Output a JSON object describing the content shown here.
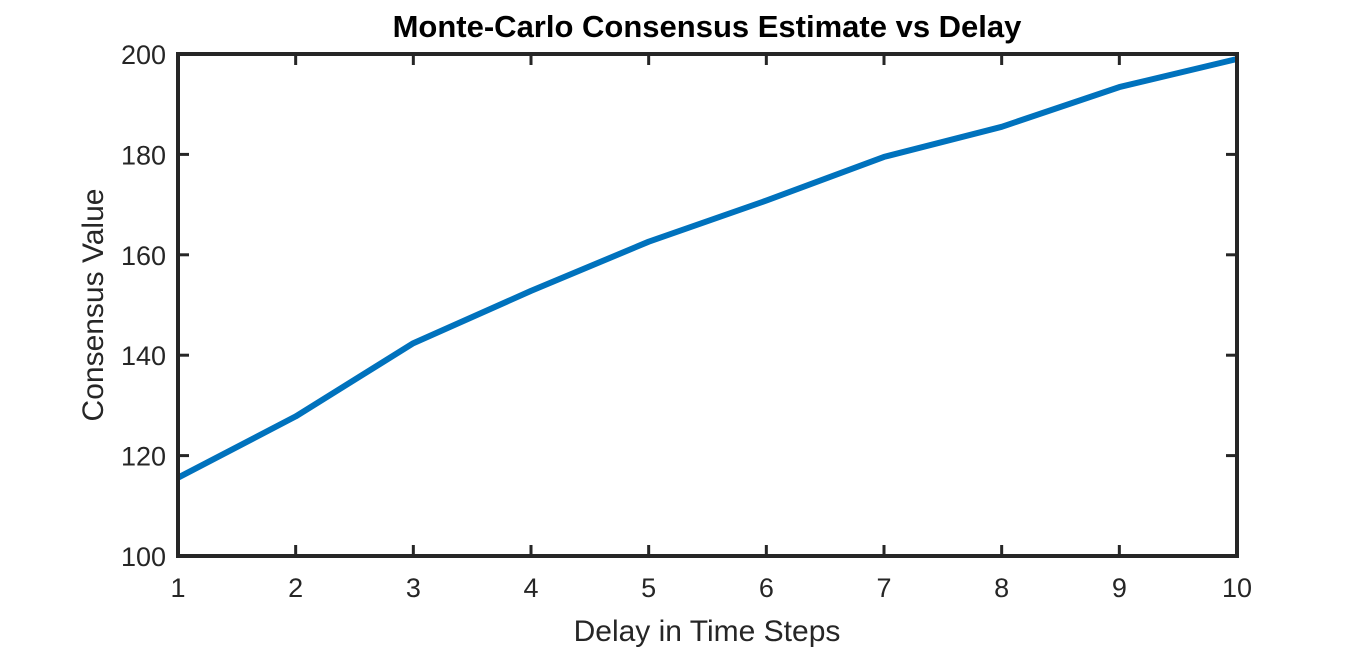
{
  "chart_data": {
    "type": "line",
    "title": "Monte-Carlo Consensus Estimate vs Delay",
    "xlabel": "Delay in Time Steps",
    "ylabel": "Consensus Value",
    "xlim": [
      1,
      10
    ],
    "ylim": [
      100,
      200
    ],
    "xticks": [
      1,
      2,
      3,
      4,
      5,
      6,
      7,
      8,
      9,
      10
    ],
    "yticks": [
      100,
      120,
      140,
      160,
      180,
      200
    ],
    "grid": false,
    "legend": "none",
    "series": [
      {
        "color": "#0072BD",
        "x": [
          1,
          2,
          3,
          4,
          5,
          6,
          7,
          8,
          9,
          10
        ],
        "values": [
          115.6,
          127.8,
          142.4,
          152.8,
          162.6,
          170.8,
          179.5,
          185.5,
          193.4,
          199.0
        ]
      }
    ]
  }
}
